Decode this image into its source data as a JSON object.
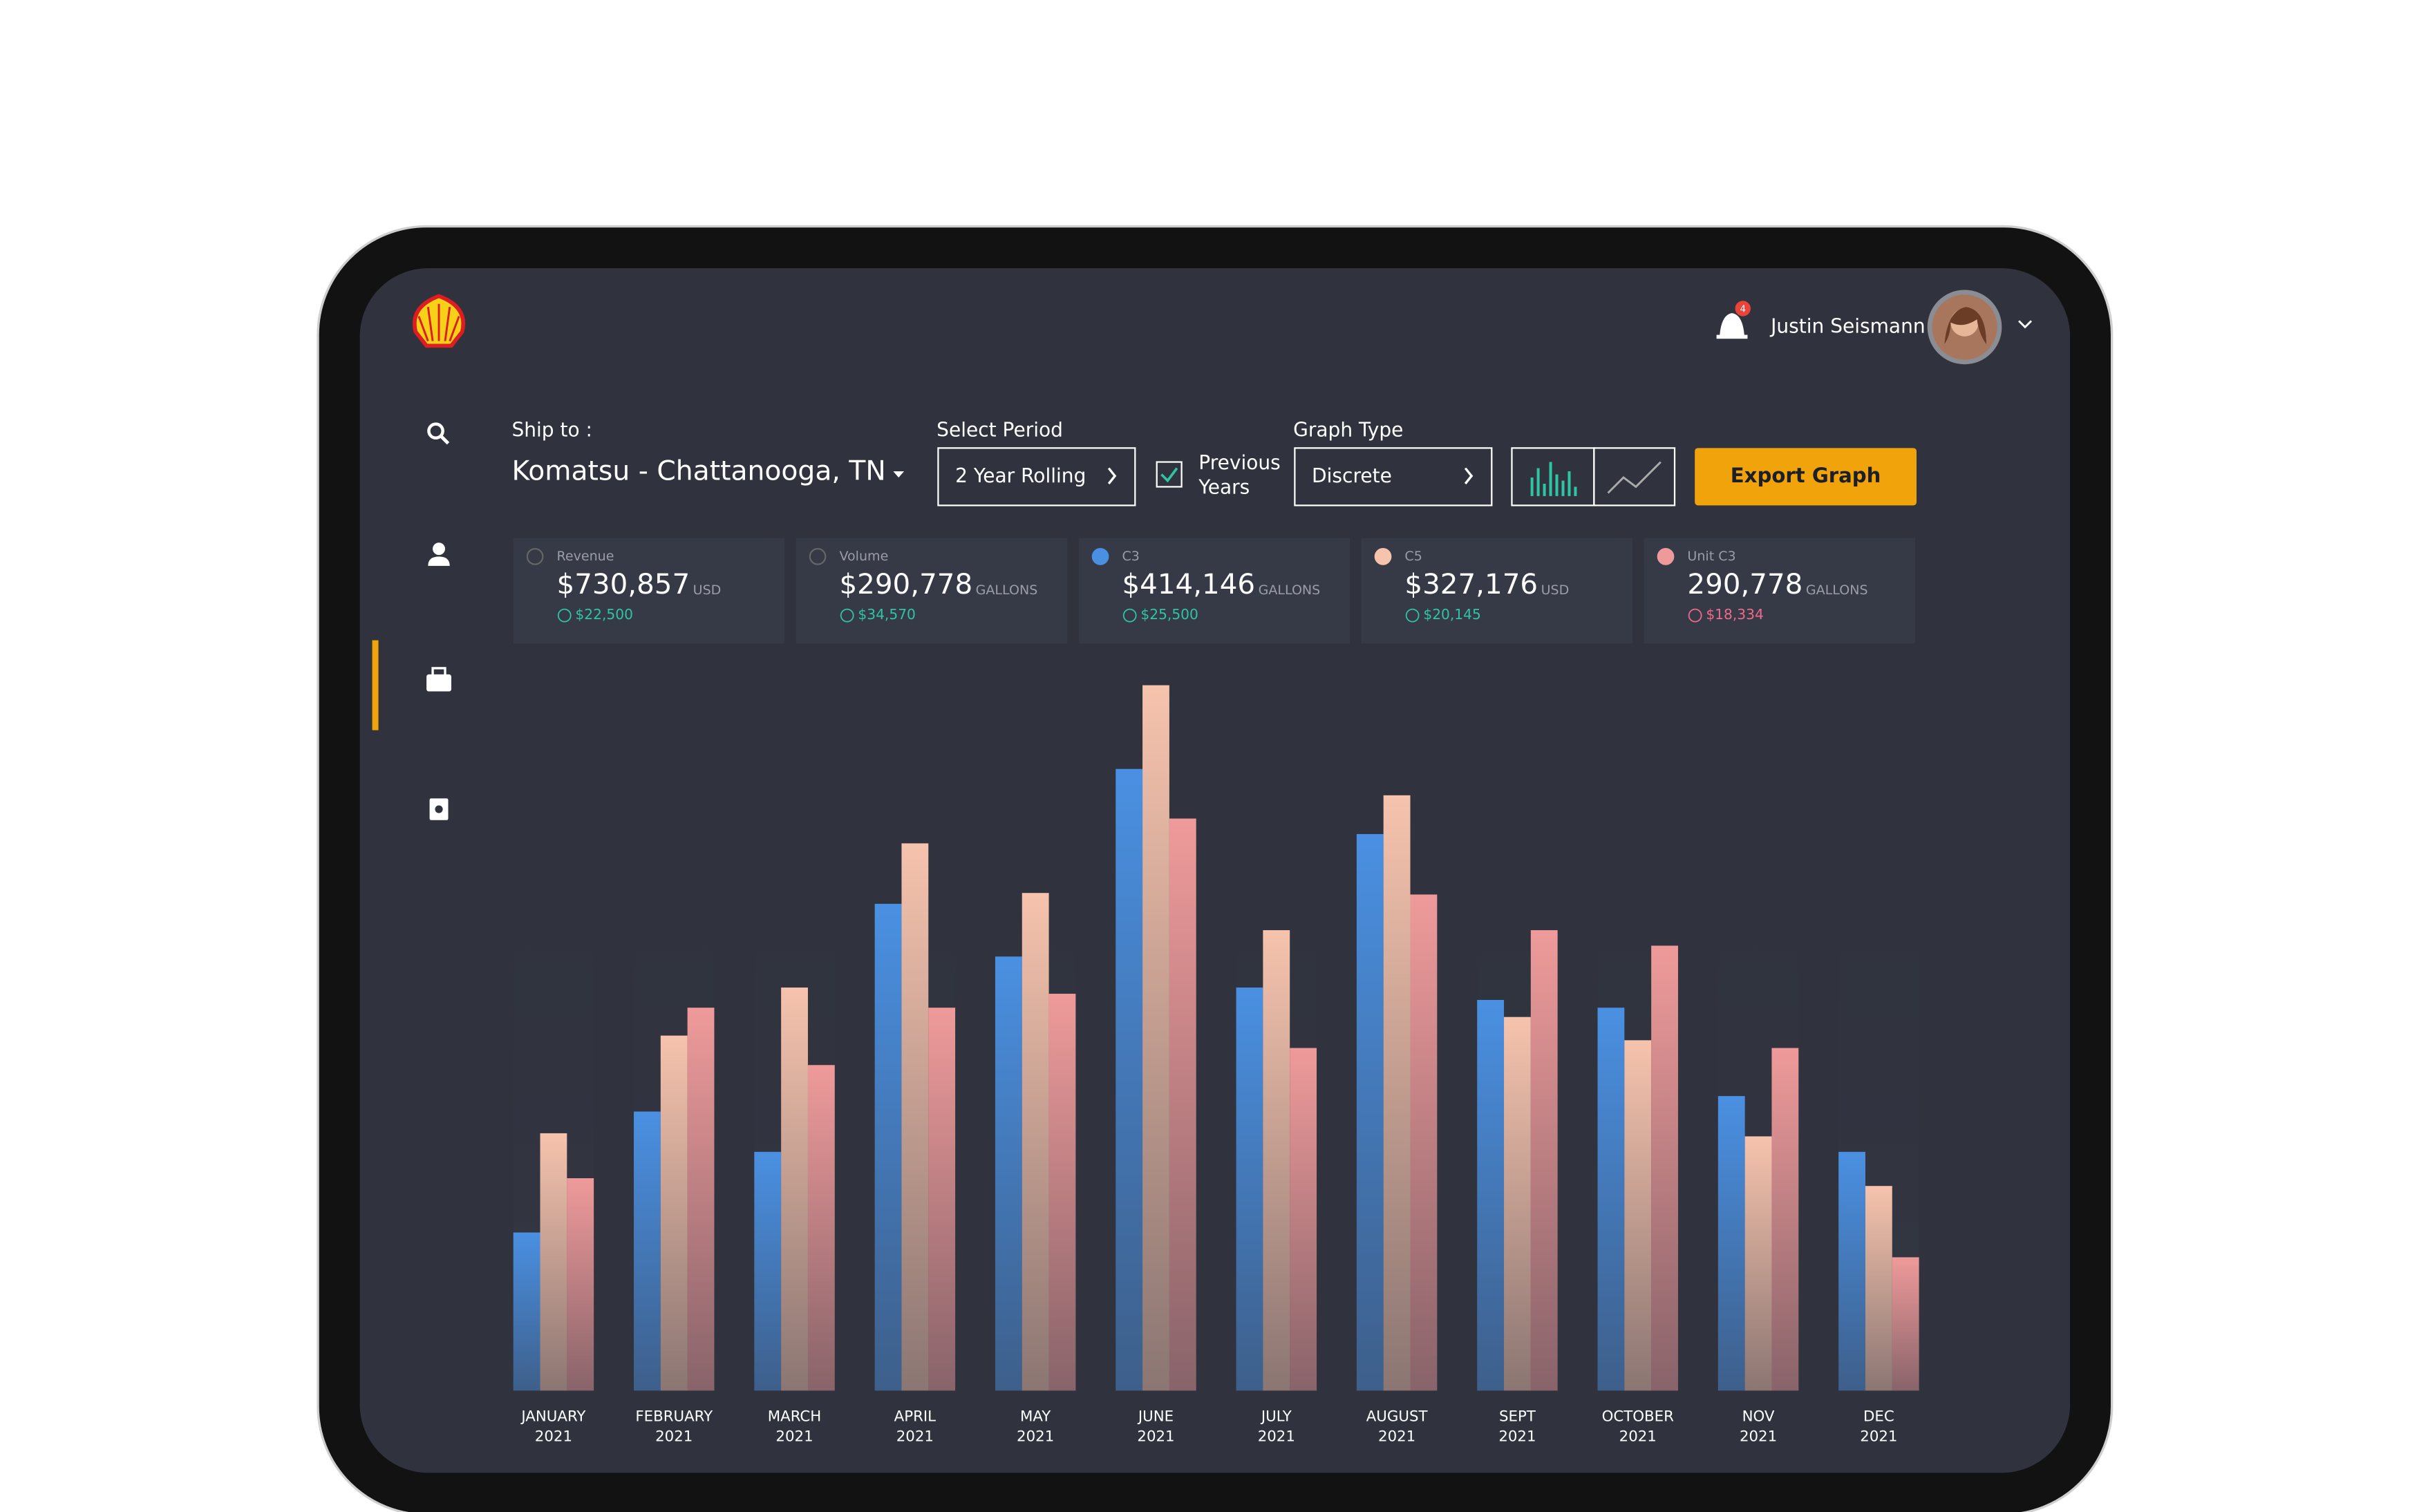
{
  "header": {
    "user_name": "Justin Seismann",
    "notification_count": "4"
  },
  "controls": {
    "ship_to_label": "Ship to :",
    "ship_to_value": "Komatsu - Chattanooga, TN",
    "period_label": "Select Period",
    "period_value": "2 Year Rolling",
    "previous_years": "Previous Years",
    "graph_type_label": "Graph Type",
    "graph_type_value": "Discrete",
    "export_button": "Export Graph"
  },
  "cards": [
    {
      "label": "Revenue",
      "value": "$730,857",
      "unit": "USD",
      "change": "$22,500"
    },
    {
      "label": "Volume",
      "value": "$290,778",
      "unit": "GALLONS",
      "change": "$34,570"
    },
    {
      "label": "C3",
      "value": "$414,146",
      "unit": "GALLONS",
      "change": "$25,500"
    },
    {
      "label": "C5",
      "value": "$327,176",
      "unit": "USD",
      "change": "$20,145"
    },
    {
      "label": "Unit C3",
      "value": "290,778",
      "unit": "GALLONS",
      "change": "$18,334"
    }
  ],
  "chart_data": {
    "type": "bar",
    "categories": [
      "JANUARY",
      "FEBRUARY",
      "MARCH",
      "APRIL",
      "MAY",
      "JUNE",
      "JULY",
      "AUGUST",
      "SEPT",
      "OCTOBER",
      "NOV",
      "DEC"
    ],
    "category_years": [
      "2021",
      "2021",
      "2021",
      "2021",
      "2021",
      "2021",
      "2021",
      "2021",
      "2021",
      "2021",
      "2021",
      "2021"
    ],
    "ylim": [
      0,
      470
    ],
    "series": [
      {
        "color": "#4a90e2",
        "values": [
          102,
          180,
          154,
          314,
          280,
          401,
          260,
          359,
          252,
          247,
          190,
          154
        ]
      },
      {
        "color": "#f6c3ad",
        "values": [
          166,
          229,
          260,
          353,
          321,
          455,
          297,
          384,
          241,
          226,
          164,
          132
        ]
      },
      {
        "color": "#ef9a9a",
        "values": [
          137,
          247,
          210,
          247,
          256,
          369,
          221,
          320,
          297,
          287,
          221,
          86
        ]
      }
    ]
  }
}
